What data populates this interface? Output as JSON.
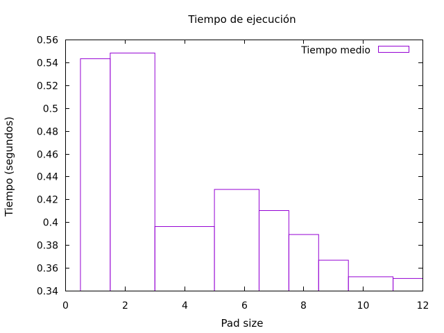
{
  "chart_data": {
    "type": "bar",
    "title": "Tiempo de ejecución",
    "xlabel": "Pad size",
    "ylabel": "Tiempo (segundos)",
    "xlim": [
      0,
      12
    ],
    "ylim": [
      0.34,
      0.56
    ],
    "xticks": [
      "0",
      "2",
      "4",
      "6",
      "8",
      "10",
      "12"
    ],
    "yticks": [
      "0.34",
      "0.36",
      "0.38",
      "0.4",
      "0.42",
      "0.44",
      "0.46",
      "0.48",
      "0.5",
      "0.52",
      "0.54",
      "0.56"
    ],
    "grid": false,
    "legend_position": "top-right",
    "series": [
      {
        "name": "Tiempo medio",
        "color": "#9400d3",
        "bars": [
          {
            "x_start": 0.5,
            "x_end": 1.5,
            "value": 0.5435
          },
          {
            "x_start": 1.5,
            "x_end": 3.0,
            "value": 0.5485
          },
          {
            "x_start": 3.0,
            "x_end": 5.0,
            "value": 0.3965
          },
          {
            "x_start": 5.0,
            "x_end": 6.5,
            "value": 0.429
          },
          {
            "x_start": 6.5,
            "x_end": 7.5,
            "value": 0.4105
          },
          {
            "x_start": 7.5,
            "x_end": 8.5,
            "value": 0.3895
          },
          {
            "x_start": 8.5,
            "x_end": 9.5,
            "value": 0.367
          },
          {
            "x_start": 9.5,
            "x_end": 11.0,
            "value": 0.3525
          },
          {
            "x_start": 11.0,
            "x_end": 12.0,
            "value": 0.351
          }
        ]
      }
    ]
  }
}
